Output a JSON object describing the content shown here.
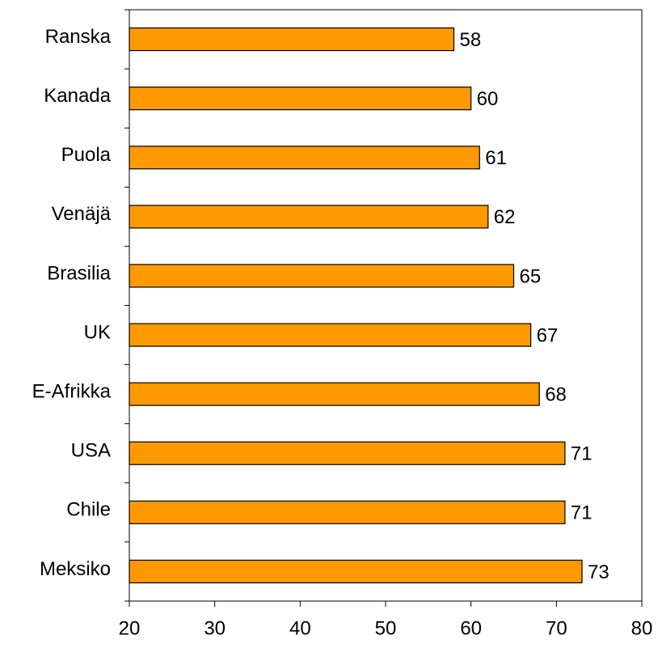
{
  "chart_data": {
    "type": "bar",
    "orientation": "horizontal",
    "categories": [
      "Ranska",
      "Kanada",
      "Puola",
      "Venäjä",
      "Brasilia",
      "UK",
      "E-Afrikka",
      "USA",
      "Chile",
      "Meksiko"
    ],
    "values": [
      58,
      60,
      61,
      62,
      65,
      67,
      68,
      71,
      71,
      73
    ],
    "color": "#ff9900",
    "xlim": [
      20,
      80
    ],
    "xticks": [
      20,
      30,
      40,
      50,
      60,
      70,
      80
    ],
    "grid": false
  }
}
